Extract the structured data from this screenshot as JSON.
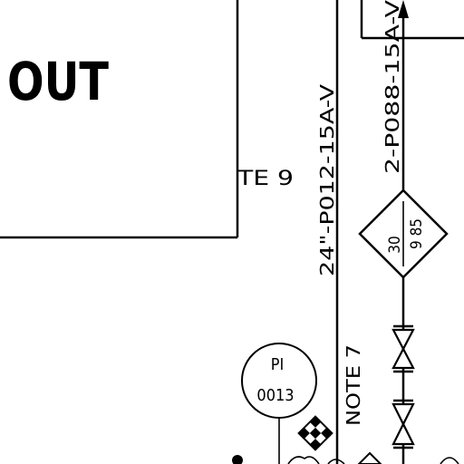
{
  "labels": {
    "box_text": "OUT",
    "note9": "TE 9",
    "line_main": "24\"-P012-15A-V",
    "line_branch": "2-P088-15A-V",
    "diamond_top": "30",
    "diamond_bottom": "9 85",
    "instrument_tag_top": "PI",
    "instrument_tag_bottom": "0013",
    "note7": "NOTE 7"
  }
}
